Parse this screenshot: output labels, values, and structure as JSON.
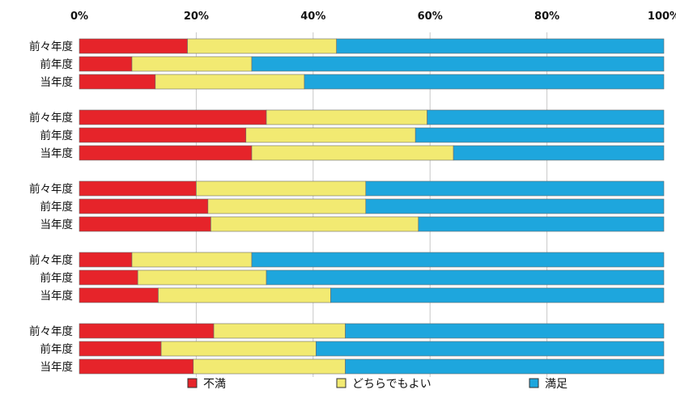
{
  "chart_data": {
    "type": "bar",
    "orientation": "horizontal",
    "stacked": true,
    "percent_stacked": true,
    "x_ticks": [
      "0%",
      "20%",
      "40%",
      "60%",
      "80%",
      "100%"
    ],
    "xlim": [
      0,
      100
    ],
    "grid": true,
    "legend_position": "bottom",
    "colors": {
      "不満": "#e6242a",
      "どちらでもよい": "#f2ea72",
      "満足": "#1ea6dd",
      "grid": "#c8c8c8",
      "background": "#ffffff"
    },
    "series_order": [
      "不満",
      "どちらでもよい",
      "満足"
    ],
    "legend": [
      "不満",
      "どちらでもよい",
      "満足"
    ],
    "groups": [
      {
        "rows": [
          {
            "label": "前々年度",
            "values": [
              18.5,
              25.5,
              56.0
            ]
          },
          {
            "label": "前年度",
            "values": [
              9.0,
              20.5,
              70.5
            ]
          },
          {
            "label": "当年度",
            "values": [
              13.0,
              25.5,
              61.5
            ]
          }
        ]
      },
      {
        "rows": [
          {
            "label": "前々年度",
            "values": [
              32.0,
              27.5,
              40.5
            ]
          },
          {
            "label": "前年度",
            "values": [
              28.5,
              29.0,
              42.5
            ]
          },
          {
            "label": "当年度",
            "values": [
              29.5,
              34.5,
              36.0
            ]
          }
        ]
      },
      {
        "rows": [
          {
            "label": "前々年度",
            "values": [
              20.0,
              29.0,
              51.0
            ]
          },
          {
            "label": "前年度",
            "values": [
              22.0,
              27.0,
              51.0
            ]
          },
          {
            "label": "当年度",
            "values": [
              22.5,
              35.5,
              42.0
            ]
          }
        ]
      },
      {
        "rows": [
          {
            "label": "前々年度",
            "values": [
              9.0,
              20.5,
              70.5
            ]
          },
          {
            "label": "前年度",
            "values": [
              10.0,
              22.0,
              68.0
            ]
          },
          {
            "label": "当年度",
            "values": [
              13.5,
              29.5,
              57.0
            ]
          }
        ]
      },
      {
        "rows": [
          {
            "label": "前々年度",
            "values": [
              23.0,
              22.5,
              54.5
            ]
          },
          {
            "label": "前年度",
            "values": [
              14.0,
              26.5,
              59.5
            ]
          },
          {
            "label": "当年度",
            "values": [
              19.5,
              26.0,
              54.5
            ]
          }
        ]
      }
    ]
  }
}
